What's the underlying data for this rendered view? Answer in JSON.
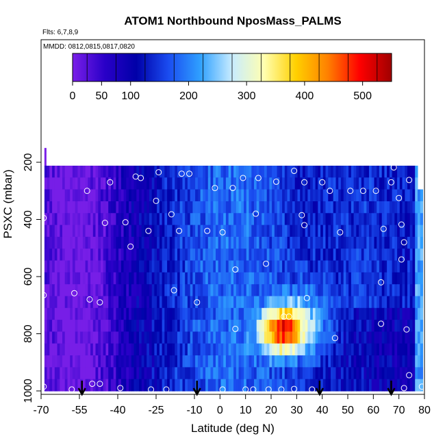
{
  "chart_data": {
    "type": "heatmap",
    "title": "ATOM1 Northbound NposMass_PALMS",
    "subtitle": "Flts: 6,7,8,9",
    "annotation": "MMDD: 0812,0815,0817,0820",
    "xlabel": "Latitude (deg N)",
    "ylabel": "PSXC (mbar)",
    "x_ticks": [
      -70,
      -55,
      -40,
      -25,
      -10,
      0,
      10,
      20,
      30,
      40,
      50,
      60,
      70,
      80
    ],
    "x_tick_labels": [
      "-70",
      "-55",
      "-40",
      "-25",
      "-10",
      "0",
      "10",
      "20",
      "30",
      "40",
      "50",
      "60",
      "70",
      "80"
    ],
    "y_ticks": [
      200,
      400,
      600,
      800,
      1000
    ],
    "y_tick_labels": [
      "200",
      "400",
      "600",
      "800",
      "1000"
    ],
    "xlim": [
      -70,
      80
    ],
    "ylim": [
      1000,
      0
    ],
    "colorbar": {
      "ticks": [
        0,
        50,
        100,
        200,
        300,
        400,
        500
      ],
      "tick_labels": [
        "0",
        "50",
        "100",
        "200",
        "300",
        "400",
        "500"
      ],
      "range": [
        0,
        550
      ],
      "colors": [
        "#7a1fe8",
        "#2a00c8",
        "#0000a8",
        "#1a4cf0",
        "#2fa0ff",
        "#c8ecff",
        "#ffffb0",
        "#ffd000",
        "#ff8000",
        "#ff0000",
        "#a00000"
      ]
    },
    "flight_markers_lat": [
      -54,
      -9,
      39,
      67
    ],
    "field_summary": [
      {
        "lat_range": [
          -70,
          -40
        ],
        "p_range": [
          210,
          1000
        ],
        "level": "low (0-100)"
      },
      {
        "lat_range": [
          -40,
          10
        ],
        "p_range": [
          210,
          1000
        ],
        "level": "low-mid (50-250)"
      },
      {
        "lat_range": [
          10,
          35
        ],
        "p_range": [
          680,
          880
        ],
        "level": "high (300-550)"
      },
      {
        "lat_range": [
          35,
          80
        ],
        "p_range": [
          210,
          680
        ],
        "level": "mid (150-300)"
      }
    ],
    "obs_points": [
      {
        "lat": -69,
        "p": 395
      },
      {
        "lat": -69,
        "p": 665
      },
      {
        "lat": -69,
        "p": 985
      },
      {
        "lat": -57,
        "p": 658
      },
      {
        "lat": -58,
        "p": 995
      },
      {
        "lat": -52,
        "p": 300
      },
      {
        "lat": -51,
        "p": 680
      },
      {
        "lat": -50,
        "p": 975
      },
      {
        "lat": -47,
        "p": 690
      },
      {
        "lat": -47,
        "p": 975
      },
      {
        "lat": -45,
        "p": 412
      },
      {
        "lat": -43,
        "p": 270
      },
      {
        "lat": -39,
        "p": 990
      },
      {
        "lat": -37,
        "p": 410
      },
      {
        "lat": -35,
        "p": 495
      },
      {
        "lat": -33,
        "p": 250
      },
      {
        "lat": -31,
        "p": 255
      },
      {
        "lat": -28,
        "p": 440
      },
      {
        "lat": -27,
        "p": 995
      },
      {
        "lat": -25,
        "p": 335
      },
      {
        "lat": -24,
        "p": 235
      },
      {
        "lat": -21,
        "p": 995
      },
      {
        "lat": -19,
        "p": 382
      },
      {
        "lat": -18,
        "p": 648
      },
      {
        "lat": -16,
        "p": 440
      },
      {
        "lat": -15,
        "p": 240
      },
      {
        "lat": -12,
        "p": 240
      },
      {
        "lat": -9,
        "p": 690
      },
      {
        "lat": -5,
        "p": 440
      },
      {
        "lat": -2,
        "p": 290
      },
      {
        "lat": 1,
        "p": 445
      },
      {
        "lat": 1,
        "p": 995
      },
      {
        "lat": 5,
        "p": 290
      },
      {
        "lat": 6,
        "p": 783
      },
      {
        "lat": 6,
        "p": 575
      },
      {
        "lat": 9,
        "p": 255
      },
      {
        "lat": 10,
        "p": 995
      },
      {
        "lat": 13,
        "p": 995
      },
      {
        "lat": 14,
        "p": 380
      },
      {
        "lat": 15,
        "p": 255
      },
      {
        "lat": 18,
        "p": 555
      },
      {
        "lat": 19,
        "p": 995
      },
      {
        "lat": 22,
        "p": 268
      },
      {
        "lat": 24,
        "p": 995
      },
      {
        "lat": 25,
        "p": 740
      },
      {
        "lat": 27,
        "p": 740
      },
      {
        "lat": 29,
        "p": 230
      },
      {
        "lat": 29,
        "p": 993
      },
      {
        "lat": 32,
        "p": 385
      },
      {
        "lat": 33,
        "p": 270
      },
      {
        "lat": 33,
        "p": 420
      },
      {
        "lat": 34,
        "p": 675
      },
      {
        "lat": 36,
        "p": 995
      },
      {
        "lat": 40,
        "p": 270
      },
      {
        "lat": 43,
        "p": 300
      },
      {
        "lat": 45,
        "p": 815
      },
      {
        "lat": 47,
        "p": 445
      },
      {
        "lat": 51,
        "p": 300
      },
      {
        "lat": 56,
        "p": 300
      },
      {
        "lat": 61,
        "p": 300
      },
      {
        "lat": 63,
        "p": 620
      },
      {
        "lat": 63,
        "p": 765
      },
      {
        "lat": 64,
        "p": 433
      },
      {
        "lat": 67,
        "p": 270
      },
      {
        "lat": 68,
        "p": 218
      },
      {
        "lat": 70,
        "p": 325
      },
      {
        "lat": 71,
        "p": 418
      },
      {
        "lat": 71,
        "p": 540
      },
      {
        "lat": 72,
        "p": 480
      },
      {
        "lat": 72,
        "p": 990
      },
      {
        "lat": 73,
        "p": 785
      },
      {
        "lat": 74,
        "p": 945
      },
      {
        "lat": 74,
        "p": 262
      },
      {
        "lat": 79,
        "p": 985
      }
    ]
  }
}
